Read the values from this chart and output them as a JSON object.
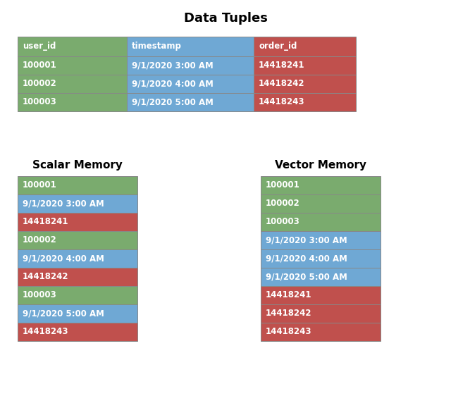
{
  "title": "Data Tuples",
  "scalar_title": "Scalar Memory",
  "vector_title": "Vector Memory",
  "colors": {
    "green": "#7aab6e",
    "blue": "#6fa8d4",
    "red": "#c0504d",
    "border": "#888888",
    "text": "white",
    "bg": "white"
  },
  "table_headers": [
    "user_id",
    "timestamp",
    "order_id"
  ],
  "header_colors": [
    "green",
    "blue",
    "red"
  ],
  "table_rows": [
    [
      "100001",
      "9/1/2020 3:00 AM",
      "14418241"
    ],
    [
      "100002",
      "9/1/2020 4:00 AM",
      "14418242"
    ],
    [
      "100003",
      "9/1/2020 5:00 AM",
      "14418243"
    ]
  ],
  "row_colors": [
    "green",
    "blue",
    "red"
  ],
  "scalar_items": [
    {
      "text": "100001",
      "color": "green"
    },
    {
      "text": "9/1/2020 3:00 AM",
      "color": "blue"
    },
    {
      "text": "14418241",
      "color": "red"
    },
    {
      "text": "100002",
      "color": "green"
    },
    {
      "text": "9/1/2020 4:00 AM",
      "color": "blue"
    },
    {
      "text": "14418242",
      "color": "red"
    },
    {
      "text": "100003",
      "color": "green"
    },
    {
      "text": "9/1/2020 5:00 AM",
      "color": "blue"
    },
    {
      "text": "14418243",
      "color": "red"
    }
  ],
  "vector_items": [
    {
      "text": "100001",
      "color": "green"
    },
    {
      "text": "100002",
      "color": "green"
    },
    {
      "text": "100003",
      "color": "green"
    },
    {
      "text": "9/1/2020 3:00 AM",
      "color": "blue"
    },
    {
      "text": "9/1/2020 4:00 AM",
      "color": "blue"
    },
    {
      "text": "9/1/2020 5:00 AM",
      "color": "blue"
    },
    {
      "text": "14418241",
      "color": "red"
    },
    {
      "text": "14418242",
      "color": "red"
    },
    {
      "text": "14418243",
      "color": "red"
    }
  ],
  "fig_w": 6.4,
  "fig_h": 5.62,
  "dpi": 100
}
